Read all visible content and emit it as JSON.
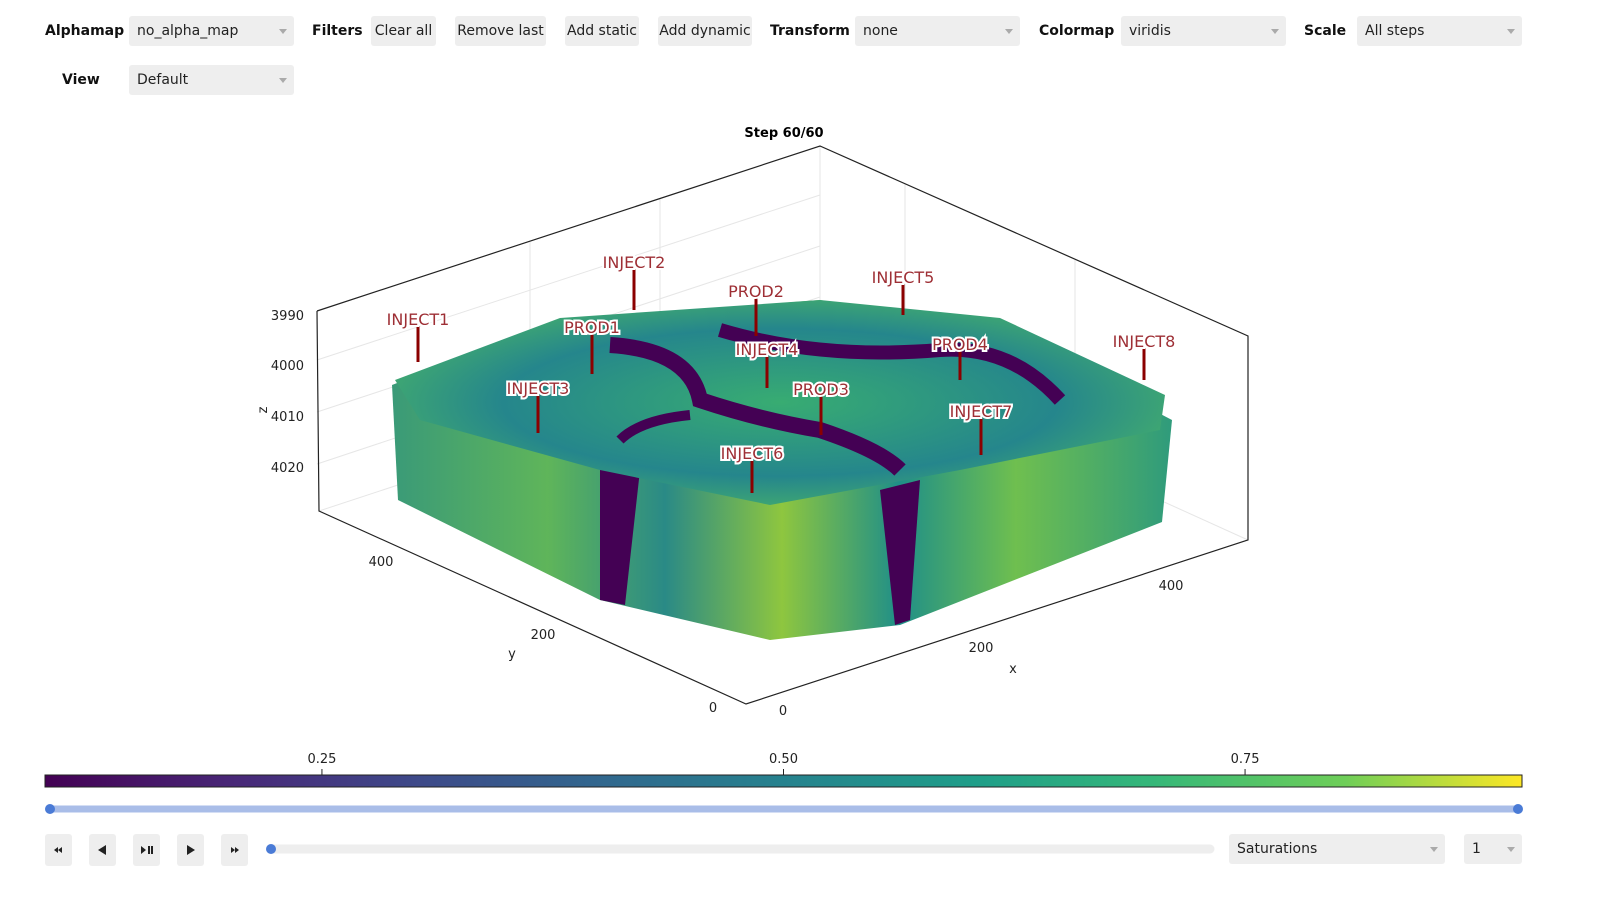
{
  "toolbar": {
    "alphamap": {
      "label": "Alphamap",
      "value": "no_alpha_map"
    },
    "filters": {
      "label": "Filters",
      "buttons": [
        "Clear all",
        "Remove last",
        "Add static",
        "Add dynamic"
      ]
    },
    "transform": {
      "label": "Transform",
      "value": "none"
    },
    "colormap": {
      "label": "Colormap",
      "value": "viridis"
    },
    "scale": {
      "label": "Scale",
      "value": "All steps"
    },
    "view": {
      "label": "View",
      "value": "Default"
    }
  },
  "plot": {
    "title": "Step 60/60",
    "z_axis": {
      "label": "z",
      "ticks": [
        3990,
        4000,
        4010,
        4020
      ]
    },
    "y_axis": {
      "label": "y",
      "ticks": [
        400,
        200,
        0
      ]
    },
    "x_axis": {
      "label": "x",
      "ticks": [
        0,
        200,
        400
      ]
    },
    "wells": [
      "INJECT1",
      "INJECT2",
      "PROD2",
      "INJECT5",
      "PROD1",
      "INJECT4",
      "PROD4",
      "INJECT8",
      "INJECT3",
      "PROD3",
      "INJECT7",
      "INJECT6"
    ]
  },
  "colorbar": {
    "lim": [
      0.1,
      0.9
    ],
    "ticks": [
      0.25,
      {
        "value": 0.5,
        "label": "0.50"
      },
      0.75
    ]
  },
  "controls": {
    "variable": "Saturations",
    "step": 1
  }
}
